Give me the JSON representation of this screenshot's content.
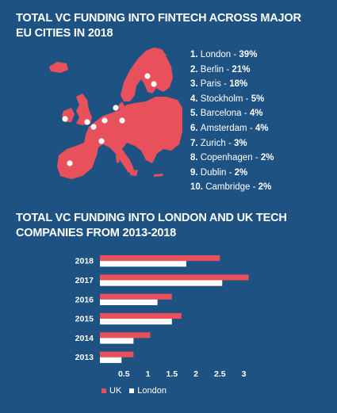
{
  "colors": {
    "background": "#1e5283",
    "uk": "#e8505b",
    "london": "#ffffff",
    "map": "#e8505b",
    "marker": "#ffffff"
  },
  "map_section": {
    "title": "TOTAL VC FUNDING INTO FINTECH ACROSS MAJOR EU CITIES IN 2018",
    "cities": [
      {
        "rank": "1.",
        "name": "London",
        "share": "39%"
      },
      {
        "rank": "2.",
        "name": "Berlin",
        "share": "21%"
      },
      {
        "rank": "3.",
        "name": "Paris",
        "share": "18%"
      },
      {
        "rank": "4.",
        "name": "Stockholm",
        "share": "5%"
      },
      {
        "rank": "5.",
        "name": "Barcelona",
        "share": "4%"
      },
      {
        "rank": "6.",
        "name": "Amsterdam",
        "share": "4%"
      },
      {
        "rank": "7.",
        "name": "Zurich",
        "share": "3%"
      },
      {
        "rank": "8.",
        "name": "Copenhagen",
        "share": "2%"
      },
      {
        "rank": "9.",
        "name": "Dublin",
        "share": "2%"
      },
      {
        "rank": "10.",
        "name": "Cambridge",
        "share": "2%"
      }
    ]
  },
  "chart_data": [
    {
      "type": "table",
      "title": "TOTAL VC FUNDING INTO FINTECH ACROSS MAJOR EU CITIES IN 2018",
      "categories": [
        "London",
        "Berlin",
        "Paris",
        "Stockholm",
        "Barcelona",
        "Amsterdam",
        "Zurich",
        "Copenhagen",
        "Dublin",
        "Cambridge"
      ],
      "values": [
        39,
        21,
        18,
        5,
        4,
        4,
        3,
        2,
        2,
        2
      ]
    },
    {
      "type": "bar",
      "orientation": "horizontal",
      "title": "TOTAL VC FUNDING INTO LONDON AND UK TECH COMPANIES FROM 2013-2018",
      "categories": [
        "2018",
        "2017",
        "2016",
        "2015",
        "2014",
        "2013"
      ],
      "series": [
        {
          "name": "UK",
          "values": [
            2.5,
            3.1,
            1.5,
            1.7,
            1.05,
            0.7
          ]
        },
        {
          "name": "London",
          "values": [
            1.8,
            2.55,
            1.2,
            1.5,
            0.7,
            0.45
          ]
        }
      ],
      "xticks": [
        "0.5",
        "1",
        "1.5",
        "2",
        "2.5",
        "3"
      ],
      "xlim": [
        0,
        3.2
      ],
      "grid": false,
      "legend": "bottom-left"
    }
  ]
}
